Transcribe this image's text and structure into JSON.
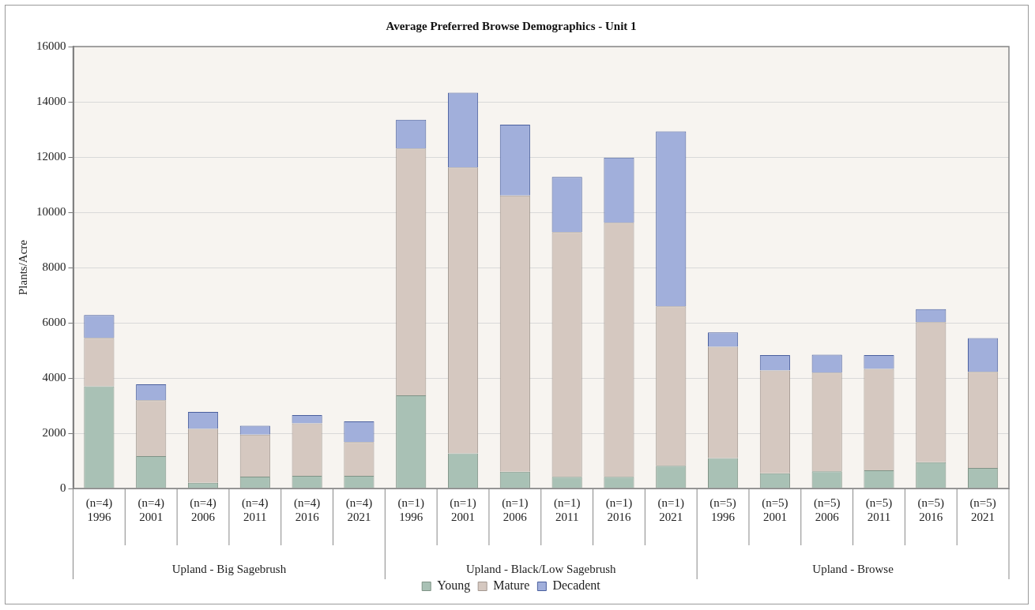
{
  "chart_data": {
    "type": "bar",
    "title": "Average Preferred Browse Demographics - Unit 1",
    "ylabel": "Plants/Acre",
    "categories": [
      "(n=4)\n1996",
      "(n=4)\n2001",
      "(n=4)\n2006",
      "(n=4)\n2011",
      "(n=4)\n2016",
      "(n=4)\n2021",
      "(n=1)\n1996",
      "(n=1)\n2001",
      "(n=1)\n2006",
      "(n=1)\n2011",
      "(n=1)\n2016",
      "(n=1)\n2021",
      "(n=5)\n1996",
      "(n=5)\n2001",
      "(n=5)\n2006",
      "(n=5)\n2011",
      "(n=5)\n2016",
      "(n=5)\n2021"
    ],
    "annotations": [
      "Upland - Big Sagebrush",
      "Upland - Black/Low Sagebrush",
      "Upland - Browse"
    ],
    "stacked": true,
    "series": [
      {
        "name": "Young",
        "color": "#a9c1b5",
        "values": [
          3700,
          1170,
          210,
          430,
          460,
          460,
          3370,
          1270,
          610,
          420,
          420,
          820,
          1100,
          550,
          620,
          660,
          950,
          740
        ]
      },
      {
        "name": "Mature",
        "color": "#d5c8c0",
        "values": [
          1750,
          2020,
          1950,
          1520,
          1900,
          1220,
          8940,
          10350,
          10000,
          8860,
          9200,
          5770,
          4030,
          3720,
          3570,
          3670,
          5070,
          3480
        ]
      },
      {
        "name": "Decadent",
        "color": "#a1afdb",
        "values": [
          830,
          580,
          610,
          320,
          300,
          750,
          1040,
          2710,
          2560,
          2000,
          2360,
          6340,
          520,
          560,
          650,
          500,
          470,
          1220
        ]
      }
    ],
    "ylim": [
      0,
      16000
    ],
    "yticks": [
      0,
      2000,
      4000,
      6000,
      8000,
      10000,
      12000,
      14000,
      16000
    ],
    "grid": "y",
    "legend": "bottom"
  }
}
